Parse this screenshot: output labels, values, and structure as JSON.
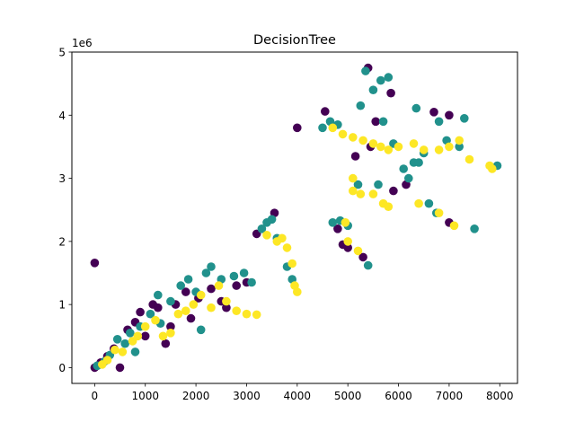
{
  "chart_data": {
    "type": "scatter",
    "title": "DecisionTree",
    "xlabel": "",
    "ylabel": "",
    "y_offset_label": "1e6",
    "xlim": [
      -450,
      8350
    ],
    "ylim": [
      -250000,
      5000000
    ],
    "x_ticks": [
      0,
      1000,
      2000,
      3000,
      4000,
      5000,
      6000,
      7000,
      8000
    ],
    "x_tick_labels": [
      "0",
      "1000",
      "2000",
      "3000",
      "4000",
      "5000",
      "6000",
      "7000",
      "8000"
    ],
    "y_ticks": [
      0,
      1000000,
      2000000,
      3000000,
      4000000,
      5000000
    ],
    "y_tick_labels": [
      "0",
      "1",
      "2",
      "3",
      "4",
      "5"
    ],
    "grid": false,
    "colors": {
      "class_0": "#440154",
      "class_1": "#21918c",
      "class_2": "#fde725"
    },
    "series": [
      {
        "color_key": "class_0",
        "points": [
          [
            0,
            1660000
          ],
          [
            0,
            0
          ],
          [
            120,
            80000
          ],
          [
            250,
            180000
          ],
          [
            380,
            300000
          ],
          [
            500,
            0
          ],
          [
            650,
            600000
          ],
          [
            800,
            720000
          ],
          [
            900,
            880000
          ],
          [
            1000,
            500000
          ],
          [
            1150,
            1000000
          ],
          [
            1250,
            950000
          ],
          [
            1400,
            380000
          ],
          [
            1600,
            1000000
          ],
          [
            1800,
            1200000
          ],
          [
            1900,
            780000
          ],
          [
            2050,
            1100000
          ],
          [
            2300,
            1250000
          ],
          [
            2500,
            1050000
          ],
          [
            2800,
            1300000
          ],
          [
            3000,
            1350000
          ],
          [
            3200,
            2120000
          ],
          [
            3550,
            2450000
          ],
          [
            4000,
            3800000
          ],
          [
            4550,
            4060000
          ],
          [
            4900,
            1950000
          ],
          [
            5000,
            1900000
          ],
          [
            5150,
            3350000
          ],
          [
            5300,
            1750000
          ],
          [
            5400,
            4750000
          ],
          [
            5550,
            3900000
          ],
          [
            5850,
            4350000
          ],
          [
            5900,
            2800000
          ],
          [
            6150,
            2900000
          ],
          [
            6700,
            4050000
          ],
          [
            7000,
            4000000
          ],
          [
            7000,
            2300000
          ],
          [
            5450,
            3500000
          ],
          [
            4800,
            2200000
          ],
          [
            2600,
            950000
          ],
          [
            1500,
            650000
          ]
        ]
      },
      {
        "color_key": "class_1",
        "points": [
          [
            50,
            30000
          ],
          [
            200,
            100000
          ],
          [
            300,
            200000
          ],
          [
            450,
            450000
          ],
          [
            600,
            380000
          ],
          [
            700,
            550000
          ],
          [
            900,
            650000
          ],
          [
            1100,
            850000
          ],
          [
            1250,
            1150000
          ],
          [
            1500,
            1050000
          ],
          [
            1700,
            1300000
          ],
          [
            1850,
            1400000
          ],
          [
            2000,
            1200000
          ],
          [
            2200,
            1500000
          ],
          [
            2300,
            1600000
          ],
          [
            2500,
            1400000
          ],
          [
            2750,
            1450000
          ],
          [
            2950,
            1500000
          ],
          [
            3100,
            1350000
          ],
          [
            3300,
            2200000
          ],
          [
            3400,
            2300000
          ],
          [
            3500,
            2350000
          ],
          [
            3800,
            1600000
          ],
          [
            3900,
            1400000
          ],
          [
            4500,
            3800000
          ],
          [
            4650,
            3900000
          ],
          [
            4800,
            3850000
          ],
          [
            4700,
            2300000
          ],
          [
            4850,
            2330000
          ],
          [
            5000,
            2250000
          ],
          [
            5200,
            2900000
          ],
          [
            5250,
            4150000
          ],
          [
            5350,
            4700000
          ],
          [
            5500,
            4400000
          ],
          [
            5650,
            4550000
          ],
          [
            5800,
            4600000
          ],
          [
            5700,
            3900000
          ],
          [
            5900,
            3550000
          ],
          [
            6100,
            3150000
          ],
          [
            6300,
            3250000
          ],
          [
            6400,
            3250000
          ],
          [
            6500,
            3400000
          ],
          [
            6350,
            4110000
          ],
          [
            6600,
            2600000
          ],
          [
            6750,
            2450000
          ],
          [
            6800,
            3900000
          ],
          [
            6950,
            3600000
          ],
          [
            7200,
            3500000
          ],
          [
            7300,
            3950000
          ],
          [
            7500,
            2200000
          ],
          [
            7950,
            3200000
          ],
          [
            5400,
            1620000
          ],
          [
            2100,
            600000
          ],
          [
            1300,
            700000
          ],
          [
            800,
            250000
          ],
          [
            5600,
            2900000
          ],
          [
            6200,
            3000000
          ],
          [
            3600,
            2050000
          ]
        ]
      },
      {
        "color_key": "class_2",
        "points": [
          [
            150,
            50000
          ],
          [
            250,
            120000
          ],
          [
            400,
            280000
          ],
          [
            550,
            250000
          ],
          [
            750,
            420000
          ],
          [
            850,
            500000
          ],
          [
            1000,
            650000
          ],
          [
            1200,
            750000
          ],
          [
            1350,
            500000
          ],
          [
            1500,
            550000
          ],
          [
            1650,
            850000
          ],
          [
            1800,
            900000
          ],
          [
            1950,
            1000000
          ],
          [
            2100,
            1150000
          ],
          [
            2300,
            950000
          ],
          [
            2450,
            1300000
          ],
          [
            2600,
            1050000
          ],
          [
            2800,
            900000
          ],
          [
            3000,
            850000
          ],
          [
            3200,
            840000
          ],
          [
            3400,
            2100000
          ],
          [
            3600,
            2000000
          ],
          [
            3700,
            2050000
          ],
          [
            3800,
            1900000
          ],
          [
            3900,
            1650000
          ],
          [
            3950,
            1300000
          ],
          [
            4000,
            1200000
          ],
          [
            4700,
            3800000
          ],
          [
            4900,
            3700000
          ],
          [
            5100,
            3650000
          ],
          [
            5300,
            3600000
          ],
          [
            5500,
            3550000
          ],
          [
            5650,
            3500000
          ],
          [
            5800,
            3450000
          ],
          [
            6000,
            3500000
          ],
          [
            6300,
            3550000
          ],
          [
            6500,
            3450000
          ],
          [
            6800,
            3450000
          ],
          [
            7000,
            3500000
          ],
          [
            7200,
            3600000
          ],
          [
            7400,
            3300000
          ],
          [
            7800,
            3200000
          ],
          [
            7850,
            3150000
          ],
          [
            5100,
            2800000
          ],
          [
            5250,
            2750000
          ],
          [
            5500,
            2750000
          ],
          [
            5700,
            2600000
          ],
          [
            5800,
            2550000
          ],
          [
            6400,
            2600000
          ],
          [
            6800,
            2450000
          ],
          [
            7100,
            2250000
          ],
          [
            5000,
            2000000
          ],
          [
            5200,
            1850000
          ],
          [
            4950,
            2300000
          ],
          [
            5100,
            3000000
          ]
        ]
      }
    ]
  }
}
